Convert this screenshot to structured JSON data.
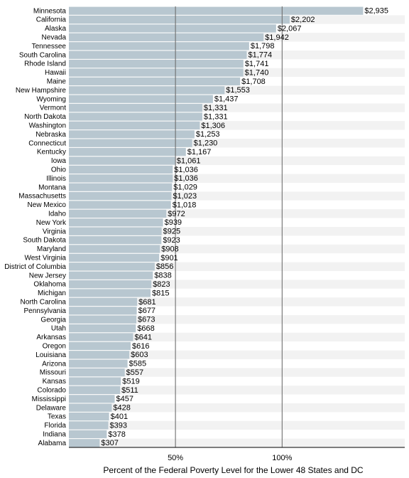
{
  "chart_data": {
    "type": "bar",
    "orientation": "horizontal",
    "xlabel": "Percent of the Federal Poverty Level for the Lower 48 States and DC",
    "x_ticks": [
      {
        "label": "50%",
        "value": 1063
      },
      {
        "label": "100%",
        "value": 2127
      }
    ],
    "xlim": [
      0,
      3350
    ],
    "bar_color": "#b8c7d0",
    "row_band_color": "#f2f2f2",
    "categories": [
      "Minnesota",
      "California",
      "Alaska",
      "Nevada",
      "Tennessee",
      "South Carolina",
      "Rhode Island",
      "Hawaii",
      "Maine",
      "New Hampshire",
      "Wyoming",
      "Vermont",
      "North Dakota",
      "Washington",
      "Nebraska",
      "Connecticut",
      "Kentucky",
      "Iowa",
      "Ohio",
      "Illinois",
      "Montana",
      "Massachusetts",
      "New Mexico",
      "Idaho",
      "New York",
      "Virginia",
      "South Dakota",
      "Maryland",
      "West Virginia",
      "District of Columbia",
      "New Jersey",
      "Oklahoma",
      "Michigan",
      "North Carolina",
      "Pennsylvania",
      "Georgia",
      "Utah",
      "Arkansas",
      "Oregon",
      "Louisiana",
      "Arizona",
      "Missouri",
      "Kansas",
      "Colorado",
      "Mississippi",
      "Delaware",
      "Texas",
      "Florida",
      "Indiana",
      "Alabama"
    ],
    "values": [
      2935,
      2202,
      2067,
      1942,
      1798,
      1774,
      1741,
      1740,
      1708,
      1553,
      1437,
      1331,
      1331,
      1306,
      1253,
      1230,
      1167,
      1061,
      1036,
      1036,
      1029,
      1023,
      1018,
      972,
      939,
      925,
      923,
      908,
      901,
      856,
      838,
      823,
      815,
      681,
      677,
      673,
      668,
      641,
      616,
      603,
      585,
      557,
      519,
      511,
      457,
      428,
      401,
      393,
      378,
      307
    ],
    "value_labels": [
      "$2,935",
      "$2,202",
      "$2,067",
      "$1,942",
      "$1,798",
      "$1,774",
      "$1,741",
      "$1,740",
      "$1,708",
      "$1,553",
      "$1,437",
      "$1,331",
      "$1,331",
      "$1,306",
      "$1,253",
      "$1,230",
      "$1,167",
      "$1,061",
      "$1,036",
      "$1,036",
      "$1,029",
      "$1,023",
      "$1,018",
      "$972",
      "$939",
      "$925",
      "$923",
      "$908",
      "$901",
      "$856",
      "$838",
      "$823",
      "$815",
      "$681",
      "$677",
      "$673",
      "$668",
      "$641",
      "$616",
      "$603",
      "$585",
      "$557",
      "$519",
      "$511",
      "$457",
      "$428",
      "$401",
      "$393",
      "$378",
      "$307"
    ]
  }
}
